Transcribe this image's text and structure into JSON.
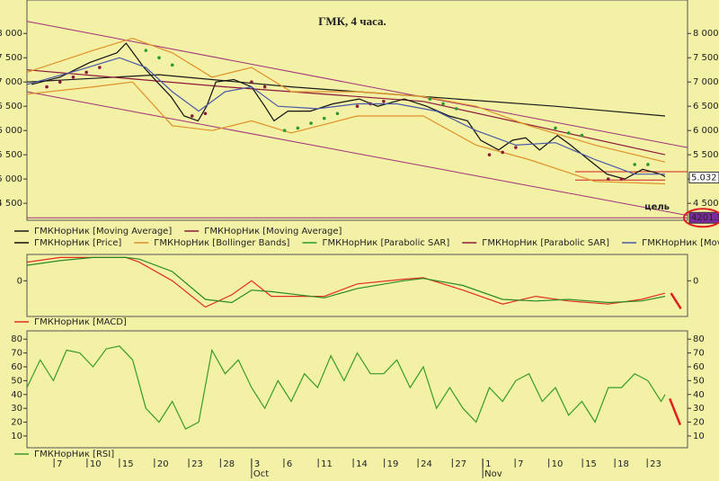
{
  "chart_data": [
    {
      "type": "line",
      "title": "ГМК, 4 часа.",
      "xlim": [
        0,
        100
      ],
      "ylim": [
        4150,
        8690
      ],
      "yticks": [
        {
          "value": 4500,
          "label": "4 500"
        },
        {
          "value": 5000,
          "label": "5 000"
        },
        {
          "value": 5500,
          "label": "5 500"
        },
        {
          "value": 6000,
          "label": "6 000"
        },
        {
          "value": 6500,
          "label": "6 500"
        },
        {
          "value": 7000,
          "label": "7 000"
        },
        {
          "value": 7500,
          "label": "7 500"
        },
        {
          "value": 8000,
          "label": "8 000"
        }
      ],
      "series": [
        {
          "name": "ГМКНорНик [Moving Average]",
          "color": "#1a1a1a",
          "x": [
            0,
            20,
            40,
            60,
            80,
            96.6
          ],
          "values": [
            7000,
            7150,
            6900,
            6700,
            6500,
            6300
          ]
        },
        {
          "name": "ГМКНорНик [Moving Average]",
          "color": "#8b1a3a",
          "x": [
            0,
            30,
            60,
            80,
            96.6
          ],
          "values": [
            7250,
            6900,
            6600,
            6000,
            5500
          ]
        },
        {
          "name": "ГМКНорНик [Price]",
          "color": "#111111",
          "x": [
            0.7,
            5,
            9.5,
            13.6,
            15,
            17.7,
            19.7,
            21.8,
            23.8,
            25.9,
            27.2,
            28.6,
            31.3,
            34,
            36,
            37.4,
            39.5,
            42.9,
            46.3,
            50.3,
            53.1,
            57.1,
            60.5,
            63.9,
            66.7,
            68.7,
            71.4,
            73.5,
            75.5,
            77.6,
            80.3,
            82.3,
            85,
            87.8,
            90.5,
            93.2,
            95.9,
            96.6
          ],
          "values": [
            6950,
            7100,
            7400,
            7600,
            7800,
            7300,
            7000,
            6700,
            6300,
            6200,
            6500,
            7000,
            7050,
            6900,
            6500,
            6200,
            6400,
            6400,
            6550,
            6650,
            6500,
            6650,
            6500,
            6300,
            6200,
            5800,
            5600,
            5800,
            5850,
            5600,
            5900,
            5700,
            5400,
            5100,
            5000,
            5200,
            5100,
            5050
          ]
        },
        {
          "name": "ГМКНорНик [Bollinger Bands]",
          "color": "#e0902a",
          "x": [
            0,
            10,
            16,
            22,
            28,
            34,
            40,
            50,
            60,
            68,
            76,
            86,
            96.6
          ],
          "values": [
            7200,
            7650,
            7900,
            7600,
            7100,
            7300,
            6800,
            6800,
            6700,
            6500,
            6100,
            5700,
            5350
          ],
          "lower": [
            6750,
            6900,
            7000,
            6100,
            6000,
            6200,
            5950,
            6300,
            6300,
            5700,
            5400,
            4950,
            4900
          ]
        },
        {
          "name": "ГМКНорНик [Parabolic SAR]",
          "color": "#2a9a2a",
          "dots": true,
          "x": [
            18,
            20,
            22,
            39,
            41,
            43,
            45,
            47,
            61,
            63,
            65,
            80,
            82,
            84,
            92,
            94
          ],
          "values": [
            7650,
            7500,
            7350,
            6000,
            6050,
            6150,
            6250,
            6350,
            6650,
            6550,
            6450,
            6050,
            5950,
            5900,
            5300,
            5300
          ]
        },
        {
          "name": "ГМКНорНик [Parabolic SAR]",
          "color": "#8b1a3a",
          "dots": true,
          "x": [
            3,
            5,
            7,
            9,
            11,
            25,
            27,
            34,
            36,
            50,
            52,
            54,
            70,
            72,
            74,
            88,
            90
          ],
          "values": [
            6900,
            7000,
            7100,
            7200,
            7300,
            6300,
            6350,
            7000,
            6900,
            6500,
            6550,
            6600,
            5500,
            5550,
            5650,
            5000,
            5000
          ]
        },
        {
          "name": "ГМКНорНик [Moving Average]",
          "color": "#4a5aa8",
          "x": [
            0,
            8,
            14,
            18,
            22,
            26,
            30,
            34,
            38,
            44,
            50,
            56,
            62,
            68,
            74,
            80,
            86,
            92,
            96.6
          ],
          "values": [
            6950,
            7250,
            7500,
            7300,
            6800,
            6400,
            6800,
            6900,
            6500,
            6450,
            6550,
            6550,
            6400,
            6000,
            5700,
            5750,
            5400,
            5100,
            5100
          ]
        }
      ],
      "trend_lines": [
        {
          "color": "#a0307a",
          "x": [
            0,
            100
          ],
          "values": [
            8250,
            5650
          ]
        },
        {
          "color": "#a0307a",
          "x": [
            0,
            100
          ],
          "values": [
            6800,
            4250
          ]
        },
        {
          "color": "#d02020",
          "x": [
            83,
            100
          ],
          "values": [
            5150,
            5150
          ]
        },
        {
          "color": "#d02020",
          "x": [
            83,
            96.6
          ],
          "values": [
            4980,
            4980
          ]
        },
        {
          "color": "#a0307a",
          "x": [
            0,
            100
          ],
          "values": [
            4201.3,
            4201.3
          ]
        }
      ],
      "price_labels": [
        {
          "value": 5032,
          "label": "5.032",
          "color": "#ffffff",
          "text_color": "#111"
        },
        {
          "value": 4201.3,
          "label": "4201.3",
          "color": "#7a2a9a",
          "text_color": "#fff"
        }
      ],
      "target_label": "цель"
    },
    {
      "type": "line",
      "xlim": [
        0,
        100
      ],
      "ylim": [
        -230,
        170
      ],
      "yticks": [
        0
      ],
      "series": [
        {
          "name": "ГМКНорНик [MACD]",
          "color": "#e03020",
          "x": [
            0,
            5,
            10,
            15,
            17,
            22,
            27,
            31,
            34,
            37,
            45,
            50,
            57,
            60,
            66,
            72,
            77,
            82,
            88,
            93,
            96.6
          ],
          "values": [
            120,
            150,
            150,
            150,
            120,
            0,
            -170,
            -90,
            0,
            -100,
            -100,
            -20,
            10,
            20,
            -60,
            -150,
            -100,
            -130,
            -150,
            -120,
            -80
          ],
          "signal": [
            100,
            130,
            150,
            150,
            140,
            60,
            -120,
            -140,
            -60,
            -70,
            -110,
            -50,
            0,
            15,
            -30,
            -120,
            -130,
            -120,
            -140,
            -130,
            -100
          ],
          "signal_color": "#2a8a2a"
        }
      ],
      "projection": {
        "x": [
          97.5,
          99
        ],
        "values": [
          -80,
          -180
        ]
      }
    },
    {
      "type": "line",
      "xlim": [
        0,
        100
      ],
      "ylim": [
        1.5,
        86
      ],
      "yticks": [
        10,
        20,
        30,
        40,
        50,
        60,
        70,
        80
      ],
      "series": [
        {
          "name": "ГМКНорНик [RSI]",
          "color": "#3a9a2a",
          "x": [
            0,
            2,
            4,
            6,
            8,
            10,
            12,
            14,
            16,
            18,
            20,
            22,
            24,
            26,
            28,
            30,
            32,
            34,
            36,
            38,
            40,
            42,
            44,
            46,
            48,
            50,
            52,
            54,
            56,
            58,
            60,
            62,
            64,
            66,
            68,
            70,
            72,
            74,
            76,
            78,
            80,
            82,
            84,
            86,
            88,
            90,
            92,
            94,
            96,
            96.6
          ],
          "values": [
            45,
            65,
            50,
            72,
            70,
            60,
            73,
            75,
            65,
            30,
            20,
            35,
            15,
            20,
            72,
            55,
            65,
            45,
            30,
            50,
            35,
            55,
            45,
            68,
            50,
            70,
            55,
            55,
            65,
            45,
            60,
            30,
            45,
            30,
            20,
            45,
            35,
            50,
            55,
            35,
            45,
            25,
            35,
            20,
            45,
            45,
            55,
            50,
            35,
            40
          ]
        }
      ],
      "projection": {
        "x": [
          97.3,
          98.9
        ],
        "values": [
          37,
          18
        ]
      },
      "xticks": [
        {
          "value": 4.1,
          "label": "7"
        },
        {
          "value": 9.1,
          "label": "10"
        },
        {
          "value": 14,
          "label": "15"
        },
        {
          "value": 19.3,
          "label": "20"
        },
        {
          "value": 24.5,
          "label": "23"
        },
        {
          "value": 29.3,
          "label": "28"
        },
        {
          "value": 34,
          "label": "3"
        },
        {
          "value": 38.9,
          "label": "6"
        },
        {
          "value": 44.1,
          "label": "11"
        },
        {
          "value": 49.4,
          "label": "14"
        },
        {
          "value": 54.1,
          "label": "19"
        },
        {
          "value": 59.2,
          "label": "24"
        },
        {
          "value": 64.4,
          "label": "27"
        },
        {
          "value": 69,
          "label": "1"
        },
        {
          "value": 73.9,
          "label": "7"
        },
        {
          "value": 79,
          "label": "10"
        },
        {
          "value": 84.1,
          "label": "15"
        },
        {
          "value": 89,
          "label": "18"
        },
        {
          "value": 93.9,
          "label": "23"
        }
      ],
      "month_ticks": [
        {
          "value": 34,
          "label": "Oct"
        },
        {
          "value": 69,
          "label": "Nov"
        }
      ]
    }
  ]
}
